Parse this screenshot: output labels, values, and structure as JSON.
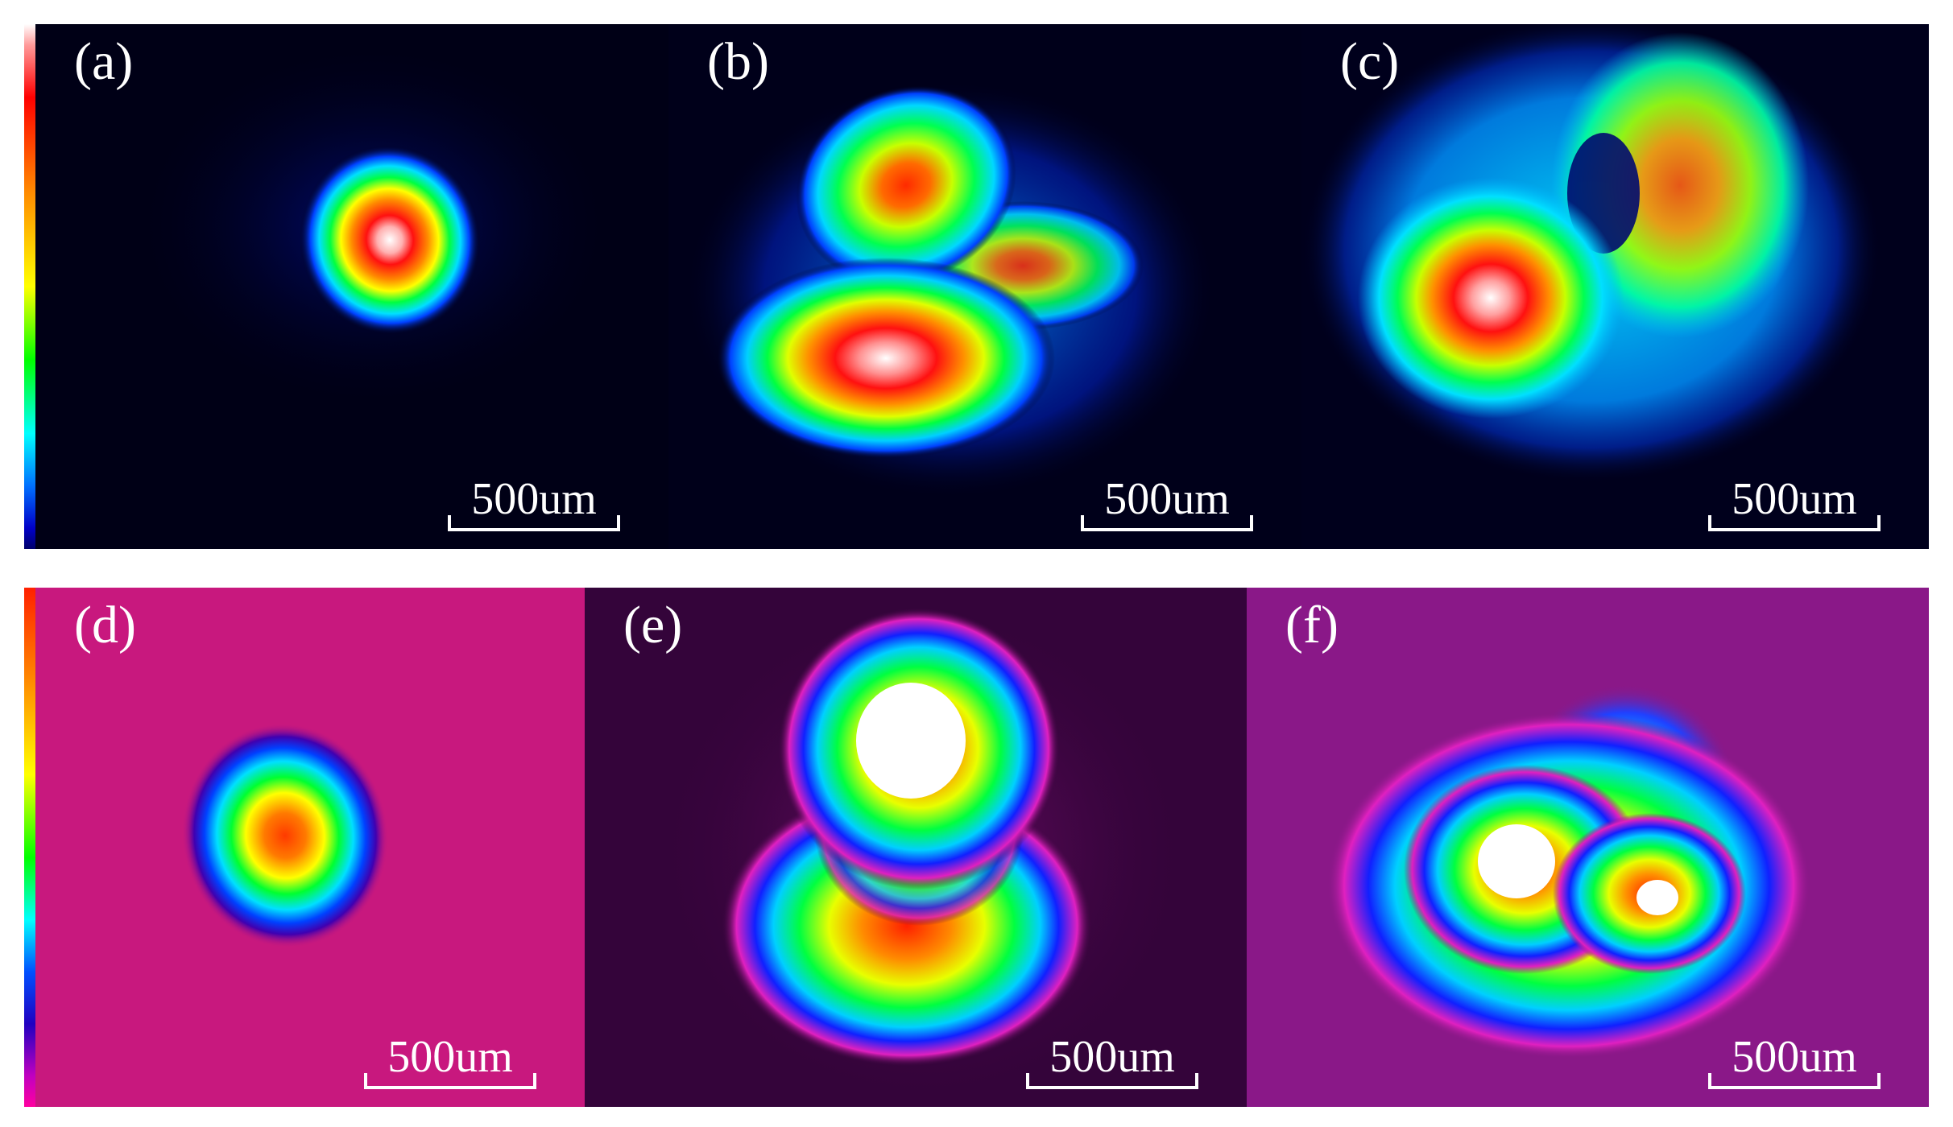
{
  "figure": {
    "panels": [
      {
        "label": "(a)",
        "scale_bar": "500um"
      },
      {
        "label": "(b)",
        "scale_bar": "500um"
      },
      {
        "label": "(c)",
        "scale_bar": "500um"
      },
      {
        "label": "(d)",
        "scale_bar": "500um"
      },
      {
        "label": "(e)",
        "scale_bar": "500um"
      },
      {
        "label": "(f)",
        "scale_bar": "500um"
      }
    ]
  }
}
